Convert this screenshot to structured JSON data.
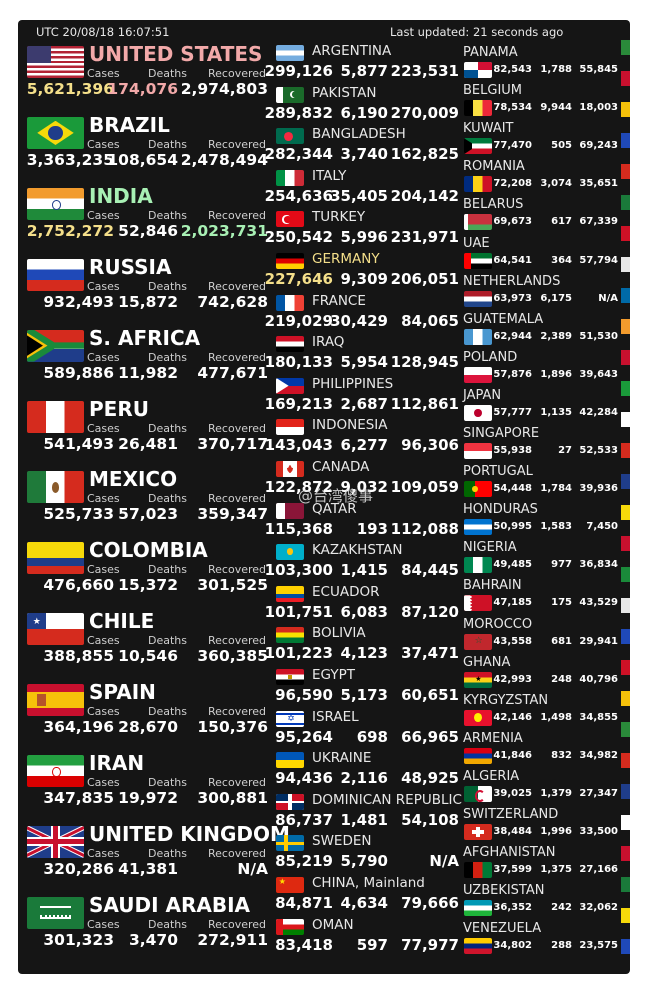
{
  "header": {
    "utc": "UTC 20/08/18 16:07:51",
    "updated": "Last updated: 21 seconds ago"
  },
  "labels": {
    "cases": "Cases",
    "deaths": "Deaths",
    "recovered": "Recovered"
  },
  "watermark": "@台湾傻事",
  "col1": [
    {
      "name": "UNITED STATES",
      "cases": "5,621,396",
      "deaths": "174,076",
      "recovered": "2,974,803",
      "nameColor": "#f2a9a9",
      "casesColor": "#f4df8a",
      "deathsColor": "#f2a9a9",
      "recColor": "#ffffff",
      "flag": "us"
    },
    {
      "name": "BRAZIL",
      "cases": "3,363,235",
      "deaths": "108,654",
      "recovered": "2,478,494",
      "nameColor": "#ffffff",
      "casesColor": "#ffffff",
      "deathsColor": "#ffffff",
      "recColor": "#ffffff",
      "flag": "br"
    },
    {
      "name": "INDIA",
      "cases": "2,752,272",
      "deaths": "52,846",
      "recovered": "2,023,731",
      "nameColor": "#a8f0b4",
      "casesColor": "#f4df8a",
      "deathsColor": "#ffffff",
      "recColor": "#a8f0b4",
      "flag": "in"
    },
    {
      "name": "RUSSIA",
      "cases": "932,493",
      "deaths": "15,872",
      "recovered": "742,628",
      "nameColor": "#ffffff",
      "casesColor": "#ffffff",
      "deathsColor": "#ffffff",
      "recColor": "#ffffff",
      "flag": "ru"
    },
    {
      "name": "S. AFRICA",
      "cases": "589,886",
      "deaths": "11,982",
      "recovered": "477,671",
      "nameColor": "#ffffff",
      "casesColor": "#ffffff",
      "deathsColor": "#ffffff",
      "recColor": "#ffffff",
      "flag": "za"
    },
    {
      "name": "PERU",
      "cases": "541,493",
      "deaths": "26,481",
      "recovered": "370,717",
      "nameColor": "#ffffff",
      "casesColor": "#ffffff",
      "deathsColor": "#ffffff",
      "recColor": "#ffffff",
      "flag": "pe"
    },
    {
      "name": "MEXICO",
      "cases": "525,733",
      "deaths": "57,023",
      "recovered": "359,347",
      "nameColor": "#ffffff",
      "casesColor": "#ffffff",
      "deathsColor": "#ffffff",
      "recColor": "#ffffff",
      "flag": "mx"
    },
    {
      "name": "COLOMBIA",
      "cases": "476,660",
      "deaths": "15,372",
      "recovered": "301,525",
      "nameColor": "#ffffff",
      "casesColor": "#ffffff",
      "deathsColor": "#ffffff",
      "recColor": "#ffffff",
      "flag": "co"
    },
    {
      "name": "CHILE",
      "cases": "388,855",
      "deaths": "10,546",
      "recovered": "360,385",
      "nameColor": "#ffffff",
      "casesColor": "#ffffff",
      "deathsColor": "#ffffff",
      "recColor": "#ffffff",
      "flag": "cl"
    },
    {
      "name": "SPAIN",
      "cases": "364,196",
      "deaths": "28,670",
      "recovered": "150,376",
      "nameColor": "#ffffff",
      "casesColor": "#ffffff",
      "deathsColor": "#ffffff",
      "recColor": "#ffffff",
      "flag": "es"
    },
    {
      "name": "IRAN",
      "cases": "347,835",
      "deaths": "19,972",
      "recovered": "300,881",
      "nameColor": "#ffffff",
      "casesColor": "#ffffff",
      "deathsColor": "#ffffff",
      "recColor": "#ffffff",
      "flag": "ir"
    },
    {
      "name": "UNITED KINGDOM",
      "cases": "320,286",
      "deaths": "41,381",
      "recovered": "N/A",
      "nameColor": "#ffffff",
      "casesColor": "#ffffff",
      "deathsColor": "#ffffff",
      "recColor": "#ffffff",
      "flag": "gb"
    },
    {
      "name": "SAUDI ARABIA",
      "cases": "301,323",
      "deaths": "3,470",
      "recovered": "272,911",
      "nameColor": "#ffffff",
      "casesColor": "#ffffff",
      "deathsColor": "#ffffff",
      "recColor": "#ffffff",
      "flag": "sa"
    }
  ],
  "col2": [
    {
      "name": "ARGENTINA",
      "cases": "299,126",
      "deaths": "5,877",
      "recovered": "223,531",
      "flag": "ar"
    },
    {
      "name": "PAKISTAN",
      "cases": "289,832",
      "deaths": "6,190",
      "recovered": "270,009",
      "flag": "pk"
    },
    {
      "name": "BANGLADESH",
      "cases": "282,344",
      "deaths": "3,740",
      "recovered": "162,825",
      "flag": "bd"
    },
    {
      "name": "ITALY",
      "cases": "254,636",
      "deaths": "35,405",
      "recovered": "204,142",
      "flag": "it"
    },
    {
      "name": "TURKEY",
      "cases": "250,542",
      "deaths": "5,996",
      "recovered": "231,971",
      "flag": "tr"
    },
    {
      "name": "GERMANY",
      "cases": "227,646",
      "deaths": "9,309",
      "recovered": "206,051",
      "flag": "de",
      "nameColor": "#f4df8a",
      "casesColor": "#f4df8a"
    },
    {
      "name": "FRANCE",
      "cases": "219,029",
      "deaths": "30,429",
      "recovered": "84,065",
      "flag": "fr"
    },
    {
      "name": "IRAQ",
      "cases": "180,133",
      "deaths": "5,954",
      "recovered": "128,945",
      "flag": "iq"
    },
    {
      "name": "PHILIPPINES",
      "cases": "169,213",
      "deaths": "2,687",
      "recovered": "112,861",
      "flag": "ph"
    },
    {
      "name": "INDONESIA",
      "cases": "143,043",
      "deaths": "6,277",
      "recovered": "96,306",
      "flag": "id"
    },
    {
      "name": "CANADA",
      "cases": "122,872",
      "deaths": "9,032",
      "recovered": "109,059",
      "flag": "ca"
    },
    {
      "name": "QATAR",
      "cases": "115,368",
      "deaths": "193",
      "recovered": "112,088",
      "flag": "qa"
    },
    {
      "name": "KAZAKHSTAN",
      "cases": "103,300",
      "deaths": "1,415",
      "recovered": "84,445",
      "flag": "kz"
    },
    {
      "name": "ECUADOR",
      "cases": "101,751",
      "deaths": "6,083",
      "recovered": "87,120",
      "flag": "ec"
    },
    {
      "name": "BOLIVIA",
      "cases": "101,223",
      "deaths": "4,123",
      "recovered": "37,471",
      "flag": "bo"
    },
    {
      "name": "EGYPT",
      "cases": "96,590",
      "deaths": "5,173",
      "recovered": "60,651",
      "flag": "eg"
    },
    {
      "name": "ISRAEL",
      "cases": "95,264",
      "deaths": "698",
      "recovered": "66,965",
      "flag": "il"
    },
    {
      "name": "UKRAINE",
      "cases": "94,436",
      "deaths": "2,116",
      "recovered": "48,925",
      "flag": "ua"
    },
    {
      "name": "DOMINICAN REPUBLIC",
      "cases": "86,737",
      "deaths": "1,481",
      "recovered": "54,108",
      "flag": "do"
    },
    {
      "name": "SWEDEN",
      "cases": "85,219",
      "deaths": "5,790",
      "recovered": "N/A",
      "flag": "se"
    },
    {
      "name": "CHINA, Mainland",
      "cases": "84,871",
      "deaths": "4,634",
      "recovered": "79,666",
      "flag": "cn"
    },
    {
      "name": "OMAN",
      "cases": "83,418",
      "deaths": "597",
      "recovered": "77,977",
      "flag": "om"
    }
  ],
  "col3": [
    {
      "name": "PANAMA",
      "cases": "82,543",
      "deaths": "1,788",
      "recovered": "55,845",
      "flag": "pa"
    },
    {
      "name": "BELGIUM",
      "cases": "78,534",
      "deaths": "9,944",
      "recovered": "18,003",
      "flag": "be"
    },
    {
      "name": "KUWAIT",
      "cases": "77,470",
      "deaths": "505",
      "recovered": "69,243",
      "flag": "kw"
    },
    {
      "name": "ROMANIA",
      "cases": "72,208",
      "deaths": "3,074",
      "recovered": "35,651",
      "flag": "ro"
    },
    {
      "name": "BELARUS",
      "cases": "69,673",
      "deaths": "617",
      "recovered": "67,339",
      "flag": "by"
    },
    {
      "name": "UAE",
      "cases": "64,541",
      "deaths": "364",
      "recovered": "57,794",
      "flag": "ae"
    },
    {
      "name": "NETHERLANDS",
      "cases": "63,973",
      "deaths": "6,175",
      "recovered": "N/A",
      "flag": "nl"
    },
    {
      "name": "GUATEMALA",
      "cases": "62,944",
      "deaths": "2,389",
      "recovered": "51,530",
      "flag": "gt"
    },
    {
      "name": "POLAND",
      "cases": "57,876",
      "deaths": "1,896",
      "recovered": "39,643",
      "flag": "pl"
    },
    {
      "name": "JAPAN",
      "cases": "57,777",
      "deaths": "1,135",
      "recovered": "42,284",
      "flag": "jp"
    },
    {
      "name": "SINGAPORE",
      "cases": "55,938",
      "deaths": "27",
      "recovered": "52,533",
      "flag": "sg"
    },
    {
      "name": "PORTUGAL",
      "cases": "54,448",
      "deaths": "1,784",
      "recovered": "39,936",
      "flag": "pt"
    },
    {
      "name": "HONDURAS",
      "cases": "50,995",
      "deaths": "1,583",
      "recovered": "7,450",
      "flag": "hn"
    },
    {
      "name": "NIGERIA",
      "cases": "49,485",
      "deaths": "977",
      "recovered": "36,834",
      "flag": "ng"
    },
    {
      "name": "BAHRAIN",
      "cases": "47,185",
      "deaths": "175",
      "recovered": "43,529",
      "flag": "bh"
    },
    {
      "name": "MOROCCO",
      "cases": "43,558",
      "deaths": "681",
      "recovered": "29,941",
      "flag": "ma"
    },
    {
      "name": "GHANA",
      "cases": "42,993",
      "deaths": "248",
      "recovered": "40,796",
      "flag": "gh"
    },
    {
      "name": "KYRGYZSTAN",
      "cases": "42,146",
      "deaths": "1,498",
      "recovered": "34,855",
      "flag": "kg"
    },
    {
      "name": "ARMENIA",
      "cases": "41,846",
      "deaths": "832",
      "recovered": "34,982",
      "flag": "am"
    },
    {
      "name": "ALGERIA",
      "cases": "39,025",
      "deaths": "1,379",
      "recovered": "27,347",
      "flag": "dz"
    },
    {
      "name": "SWITZERLAND",
      "cases": "38,484",
      "deaths": "1,996",
      "recovered": "33,500",
      "flag": "ch"
    },
    {
      "name": "AFGHANISTAN",
      "cases": "37,599",
      "deaths": "1,375",
      "recovered": "27,166",
      "flag": "af"
    },
    {
      "name": "UZBEKISTAN",
      "cases": "36,352",
      "deaths": "242",
      "recovered": "32,062",
      "flag": "uz"
    },
    {
      "name": "VENEZUELA",
      "cases": "34,802",
      "deaths": "288",
      "recovered": "23,575",
      "flag": "ve"
    }
  ]
}
